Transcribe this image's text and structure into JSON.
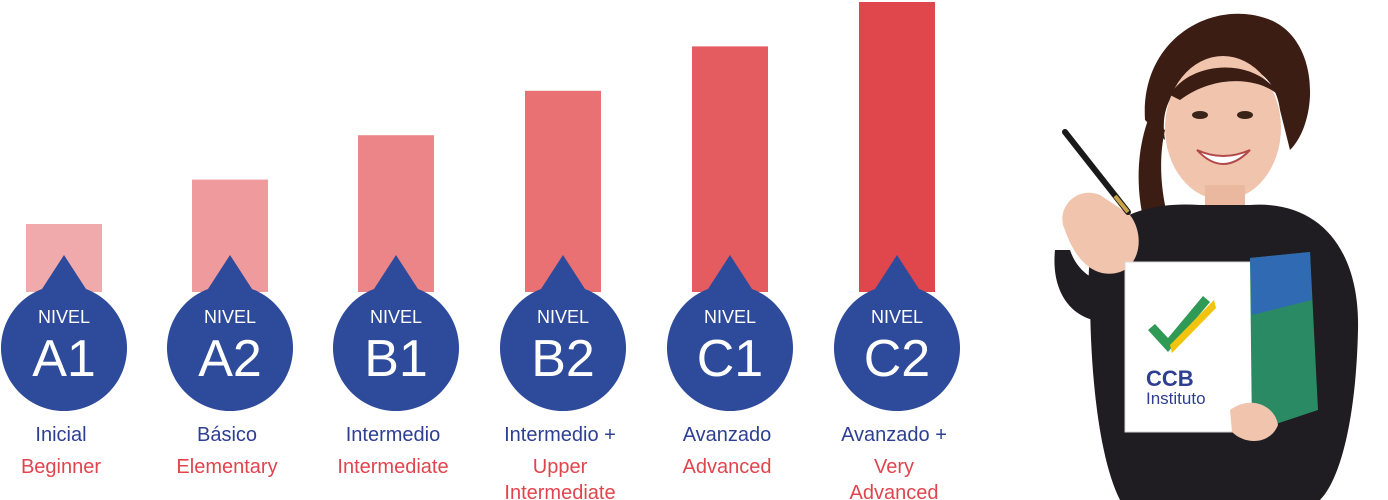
{
  "chart_data": {
    "type": "bar",
    "levels": [
      {
        "code": "A1",
        "word": "NIVEL",
        "es": "Inicial",
        "en": [
          "Beginner"
        ],
        "value": 1,
        "color": "#f1aaac"
      },
      {
        "code": "A2",
        "word": "NIVEL",
        "es": "Básico",
        "en": [
          "Elementary"
        ],
        "value": 2,
        "color": "#ef9a9d"
      },
      {
        "code": "B1",
        "word": "NIVEL",
        "es": "Intermedio",
        "en": [
          "Intermediate"
        ],
        "value": 3,
        "color": "#ec8587"
      },
      {
        "code": "B2",
        "word": "NIVEL",
        "es": "Intermedio +",
        "en": [
          "Upper",
          "Intermediate"
        ],
        "value": 4,
        "color": "#e97073"
      },
      {
        "code": "C1",
        "word": "NIVEL",
        "es": "Avanzado",
        "en": [
          "Advanced"
        ],
        "value": 5,
        "color": "#e45b60"
      },
      {
        "code": "C2",
        "word": "NIVEL",
        "es": "Avanzado +",
        "en": [
          "Very",
          "Advanced"
        ],
        "value": 6,
        "color": "#e0474c"
      }
    ],
    "ylim": [
      0,
      6
    ],
    "grid": false,
    "badge_color": "#2e4a9b",
    "es_color": "#2e3f93",
    "en_color": "#e0454d"
  },
  "brand": {
    "logo_name": "CCB",
    "logo_sub": "Instituto",
    "logo_icon": "check-mark-icon"
  }
}
